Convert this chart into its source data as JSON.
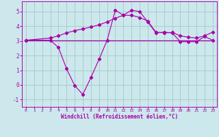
{
  "xlabel": "Windchill (Refroidissement éolien,°C)",
  "background_color": "#cce8ec",
  "grid_color": "#aacccc",
  "line_color": "#aa00aa",
  "xlim": [
    -0.5,
    23.5
  ],
  "ylim": [
    -1.5,
    5.7
  ],
  "xticks": [
    0,
    1,
    2,
    3,
    4,
    5,
    6,
    7,
    8,
    9,
    10,
    11,
    12,
    13,
    14,
    15,
    16,
    17,
    18,
    19,
    20,
    21,
    22,
    23
  ],
  "yticks": [
    -1,
    0,
    1,
    2,
    3,
    4,
    5
  ],
  "line1_x": [
    0,
    1,
    2,
    3,
    4,
    5,
    6,
    7,
    8,
    9,
    10,
    11,
    12,
    13,
    14,
    15,
    16,
    17,
    18,
    19,
    20,
    21,
    22,
    23
  ],
  "line1_y": [
    3.05,
    3.05,
    3.05,
    3.05,
    3.05,
    3.05,
    3.05,
    3.05,
    3.05,
    3.05,
    3.05,
    3.05,
    3.05,
    3.05,
    3.05,
    3.05,
    3.05,
    3.05,
    3.05,
    3.05,
    3.05,
    3.05,
    3.05,
    3.05
  ],
  "line2_x": [
    0,
    3,
    4,
    5,
    6,
    7,
    8,
    9,
    10,
    11,
    12,
    13,
    14,
    15,
    16,
    17,
    18,
    19,
    20,
    21,
    22,
    23
  ],
  "line2_y": [
    3.05,
    3.2,
    3.35,
    3.55,
    3.7,
    3.82,
    3.95,
    4.1,
    4.3,
    4.55,
    4.75,
    4.75,
    4.6,
    4.35,
    3.6,
    3.55,
    3.58,
    3.35,
    3.25,
    3.2,
    3.35,
    3.6
  ],
  "line3_x": [
    0,
    3,
    4,
    5,
    6,
    7,
    8,
    9,
    10,
    11,
    12,
    13,
    14,
    15,
    16,
    17,
    18,
    19,
    20,
    21,
    22,
    23
  ],
  "line3_y": [
    3.05,
    3.05,
    2.55,
    1.1,
    -0.05,
    -0.65,
    0.5,
    1.75,
    3.05,
    5.1,
    4.75,
    5.1,
    5.0,
    4.3,
    3.55,
    3.6,
    3.55,
    2.95,
    2.95,
    2.95,
    3.3,
    3.05
  ]
}
